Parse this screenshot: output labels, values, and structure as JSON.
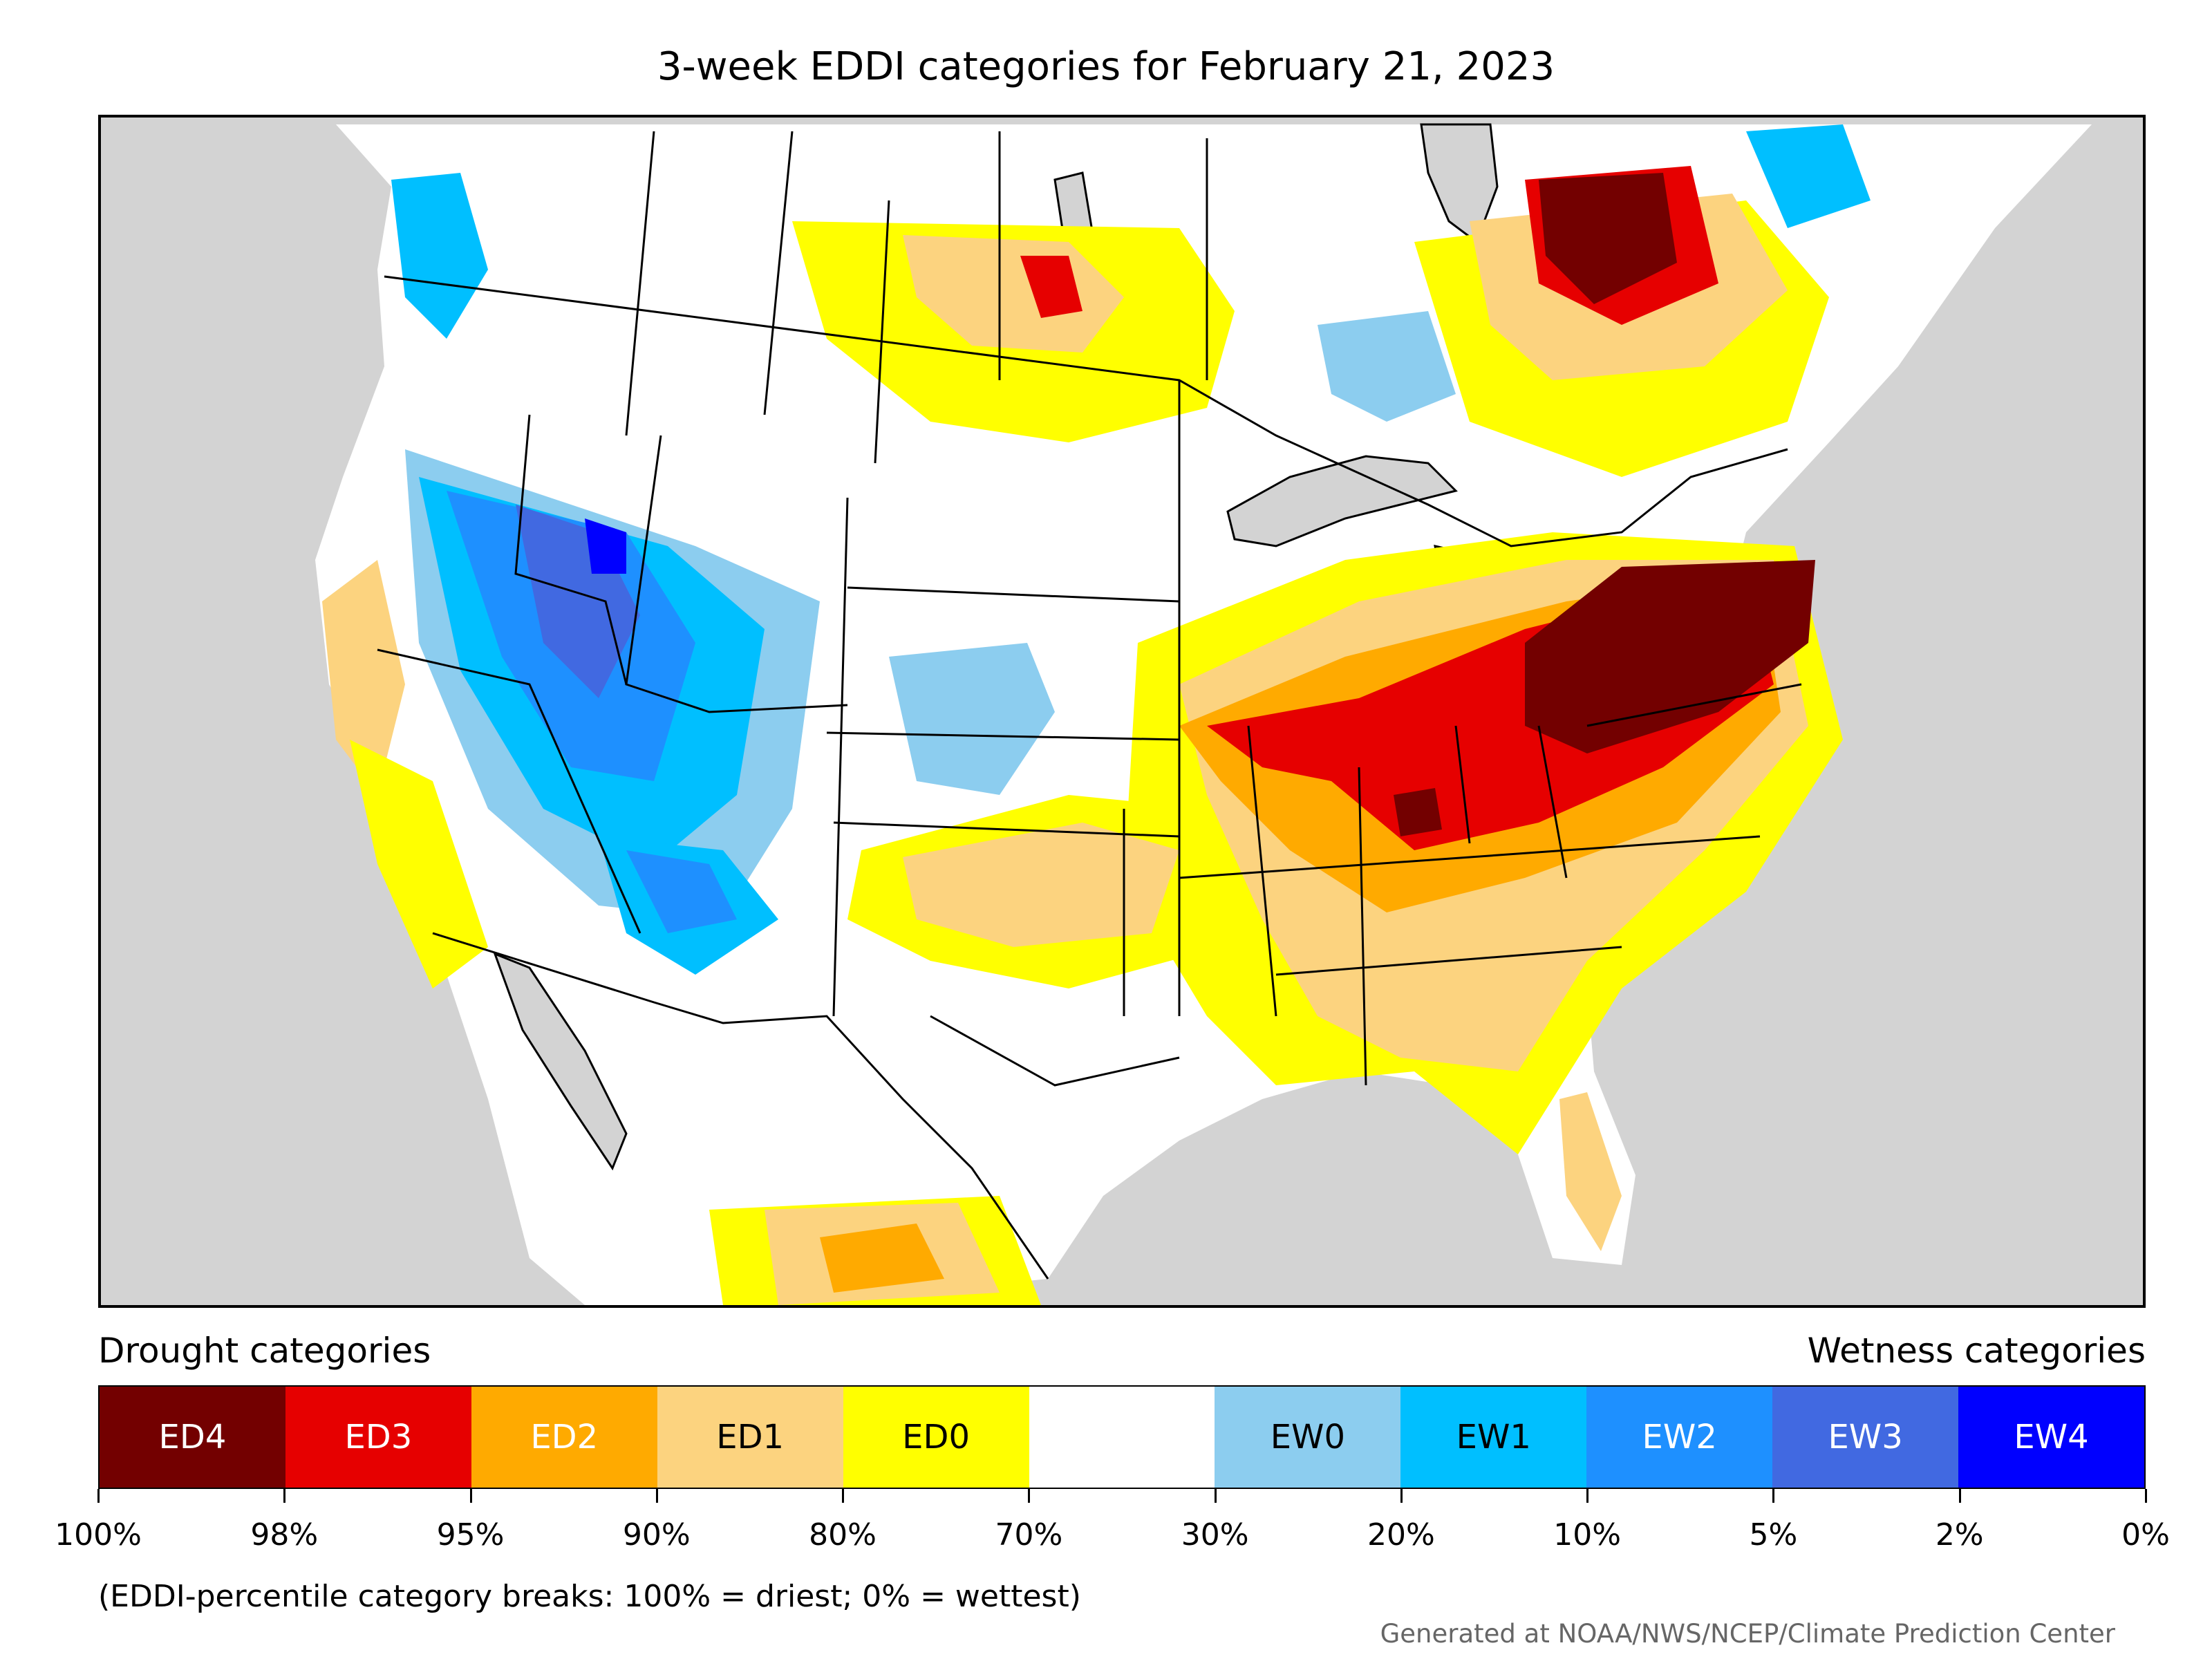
{
  "title": "3-week EDDI categories for February 21, 2023",
  "legend": {
    "drought_heading": "Drought categories",
    "wetness_heading": "Wetness categories",
    "categories": [
      {
        "label": "ED4",
        "color": "#730000",
        "text_color": "#ffffff"
      },
      {
        "label": "ED3",
        "color": "#e60000",
        "text_color": "#ffffff"
      },
      {
        "label": "ED2",
        "color": "#ffaa00",
        "text_color": "#ffffff"
      },
      {
        "label": "ED1",
        "color": "#fcd37f",
        "text_color": "#000000"
      },
      {
        "label": "ED0",
        "color": "#ffff00",
        "text_color": "#000000"
      },
      {
        "label": "",
        "color": "#ffffff",
        "text_color": "#000000"
      },
      {
        "label": "EW0",
        "color": "#8ccdef",
        "text_color": "#000000"
      },
      {
        "label": "EW1",
        "color": "#00bfff",
        "text_color": "#000000"
      },
      {
        "label": "EW2",
        "color": "#1e90ff",
        "text_color": "#ffffff"
      },
      {
        "label": "EW3",
        "color": "#4169e1",
        "text_color": "#ffffff"
      },
      {
        "label": "EW4",
        "color": "#0000ff",
        "text_color": "#ffffff"
      }
    ],
    "tick_labels": [
      "100%",
      "98%",
      "95%",
      "90%",
      "80%",
      "70%",
      "30%",
      "20%",
      "10%",
      "5%",
      "2%",
      "0%"
    ]
  },
  "note": "(EDDI-percentile category breaks: 100% = driest; 0% = wettest)",
  "credit": "Generated at NOAA/NWS/NCEP/Climate Prediction Center",
  "map": {
    "background_color": "#d3d3d3",
    "land_color": "#ffffff",
    "water_color": "#d3d3d3",
    "boundary_color": "#000000"
  }
}
